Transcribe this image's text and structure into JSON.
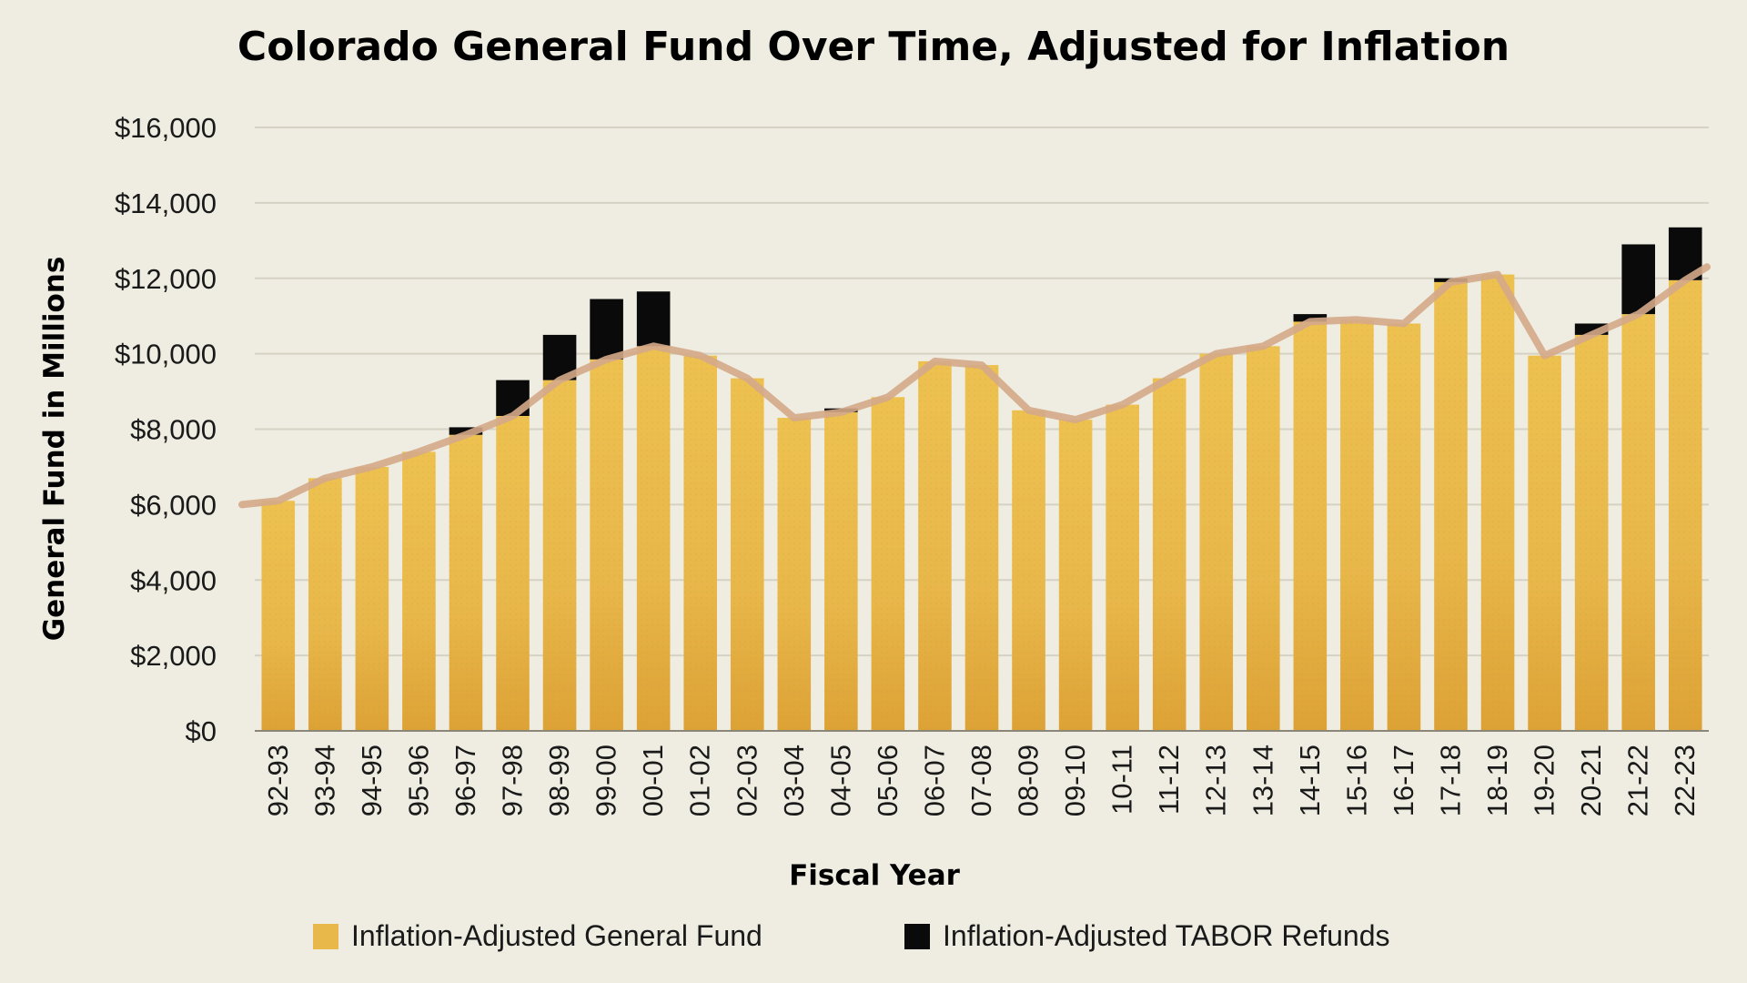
{
  "chart_data": {
    "type": "bar",
    "title": "Colorado General Fund Over Time, Adjusted for Inflation",
    "xlabel": "Fiscal Year",
    "ylabel": "General Fund in Millions",
    "ylim": [
      0,
      16000
    ],
    "yticks": [
      0,
      2000,
      4000,
      6000,
      8000,
      10000,
      12000,
      14000,
      16000
    ],
    "ytick_labels": [
      "$0",
      "$2,000",
      "$4,000",
      "$6,000",
      "$8,000",
      "$10,000",
      "$12,000",
      "$14,000",
      "$16,000"
    ],
    "grid": true,
    "stacked": true,
    "legend_position": "bottom",
    "categories": [
      "92-93",
      "93-94",
      "94-95",
      "95-96",
      "96-97",
      "97-98",
      "98-99",
      "99-00",
      "00-01",
      "01-02",
      "02-03",
      "03-04",
      "04-05",
      "05-06",
      "06-07",
      "07-08",
      "08-09",
      "09-10",
      "10-11",
      "11-12",
      "12-13",
      "13-14",
      "14-15",
      "15-16",
      "16-17",
      "17-18",
      "18-19",
      "19-20",
      "20-21",
      "21-22",
      "22-23"
    ],
    "series": [
      {
        "name": "Inflation-Adjusted General Fund",
        "color": "#E8B84A",
        "values": [
          6100,
          6700,
          7000,
          7400,
          7850,
          8350,
          9300,
          9850,
          10200,
          9950,
          9350,
          8300,
          8450,
          8850,
          9800,
          9700,
          8500,
          8250,
          8650,
          9350,
          10000,
          10200,
          10850,
          10900,
          10800,
          11900,
          12100,
          9950,
          10500,
          11050,
          11950
        ]
      },
      {
        "name": "Inflation-Adjusted TABOR Refunds",
        "color": "#0A0A0A",
        "values": [
          0,
          0,
          0,
          0,
          200,
          950,
          1200,
          1600,
          1450,
          0,
          0,
          0,
          100,
          0,
          0,
          0,
          0,
          0,
          0,
          0,
          0,
          0,
          200,
          0,
          0,
          100,
          0,
          0,
          300,
          1850,
          1400
        ]
      }
    ],
    "trend_line": {
      "color": "#D4A88A",
      "values": [
        6000,
        6100,
        6700,
        7000,
        7400,
        7850,
        8350,
        9300,
        9850,
        10200,
        9950,
        9350,
        8300,
        8450,
        8850,
        9800,
        9700,
        8500,
        8250,
        8650,
        9350,
        10000,
        10200,
        10850,
        10900,
        10800,
        11900,
        12100,
        9950,
        10500,
        11050,
        11950,
        12300
      ]
    }
  }
}
